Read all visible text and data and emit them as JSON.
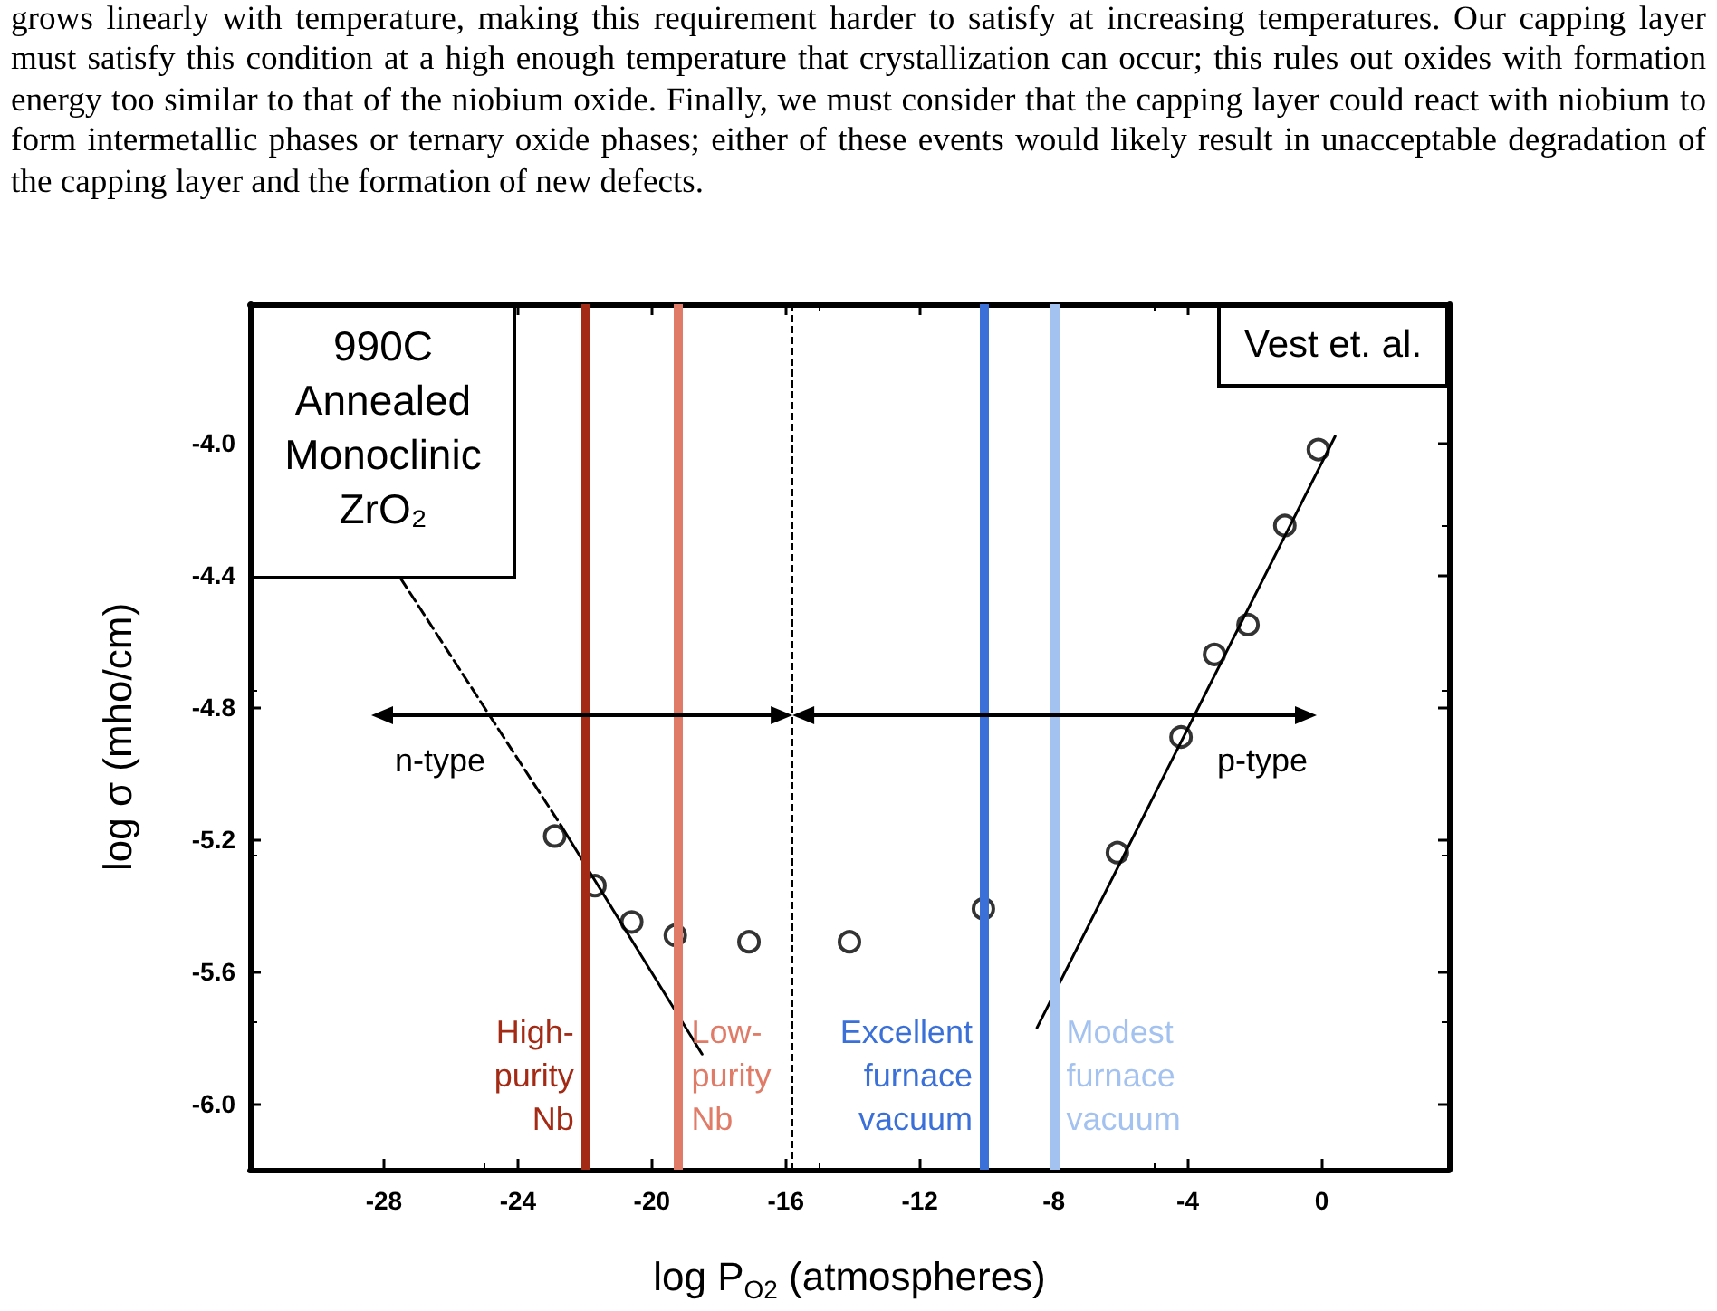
{
  "chart_data": {
    "type": "scatter",
    "xlabel": "log P$_{O2}$ (atmospheres)",
    "ylabel": "log σ (mho/cm)",
    "annotations": [
      "grows linearly with temperature, making this requirement harder to satisfy at increasing temperatures. Our capping layer must satisfy this condition at a high enough temperature that crystallization can occur; this rules out oxides with formation energy too similar to that of the niobium oxide. Finally, we must consider that the capping layer could react with niobium to form intermetallic phases or ternary oxide phases; either of these events would likely result in unacceptable degradation of the capping layer and the formation of new defects.",
      "990C Annealed Monoclinic ZrO₂",
      "Vest et. al.",
      "n-type",
      "p-type"
    ],
    "xlim": [
      -32,
      3.8
    ],
    "xticks": [
      -28,
      -24,
      -20,
      -16,
      -12,
      -8,
      -4,
      0
    ],
    "ylim": [
      -6.2,
      -3.58
    ],
    "yticks": [
      {
        "value": -6,
        "label": "-6.0"
      },
      {
        "value": -5.6,
        "label": "-5.6"
      },
      {
        "value": -5.2,
        "label": "-5.2"
      },
      {
        "value": -4.8,
        "label": "-4.8"
      },
      {
        "value": -4.4,
        "label": "-4.4"
      },
      {
        "value": -4,
        "label": "-4.0"
      }
    ],
    "grid": false,
    "series": [
      {
        "color": "#000000",
        "marker": "circle",
        "x": [
          -22.9,
          -21.7,
          -20.6,
          -19.3,
          -17.1,
          -14.1,
          -10.1,
          -6.1,
          -4.2,
          -3.2,
          -2.2,
          -1.1,
          -0.1
        ],
        "values": [
          -5.19,
          -5.34,
          -5.45,
          -5.49,
          -5.51,
          -5.51,
          -5.41,
          -5.24,
          -4.89,
          -4.64,
          -4.55,
          -4.25,
          -4.02
        ]
      },
      {
        "type": "line",
        "color": "#000000",
        "marker": "none",
        "line_style": "dashed",
        "x": [
          -27.5,
          -22.7
        ],
        "values": [
          -4.41,
          -5.16
        ]
      },
      {
        "type": "line",
        "color": "#000000",
        "marker": "none",
        "line_style": "solid",
        "x": [
          -22.7,
          -18.5
        ],
        "values": [
          -5.16,
          -5.85
        ]
      },
      {
        "type": "line",
        "color": "#000000",
        "marker": "none",
        "line_style": "solid",
        "x": [
          -8.5,
          0.4
        ],
        "values": [
          -5.77,
          -3.98
        ]
      }
    ],
    "ref_lines": [
      {
        "axis": "x",
        "value": -22,
        "label": "High-purity Nb",
        "color": "#a32a15"
      },
      {
        "axis": "x",
        "value": -19.2,
        "label": "Low-purity Nb",
        "color": "#e07b68"
      },
      {
        "axis": "x",
        "value": -15.8,
        "color": "#000000",
        "line_style": "dashed"
      },
      {
        "axis": "x",
        "value": -10.1,
        "label": "Excellent furnace vacuum",
        "color": "#3a70d8"
      },
      {
        "axis": "x",
        "value": -8,
        "label": "Modest furnace vacuum",
        "color": "#a4c2f0"
      }
    ]
  }
}
